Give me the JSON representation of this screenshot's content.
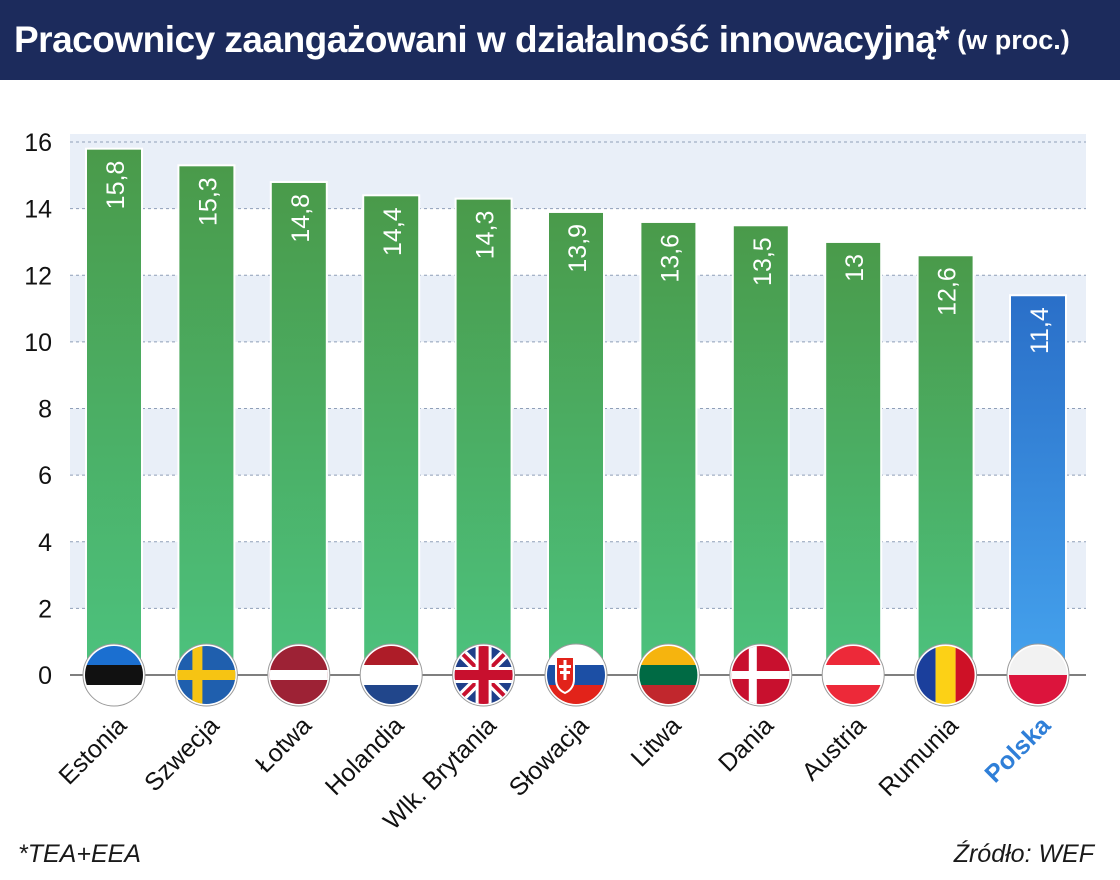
{
  "header": {
    "title": "Pracownicy zaangażowani w działalność innowacyjną*",
    "unit": "(w proc.)"
  },
  "footer": {
    "footnote": "*TEA+EEA",
    "source": "Źródło: WEF"
  },
  "colors": {
    "header_bg": "#1c2b5c",
    "bar_green_top": "#4a9a4a",
    "bar_green_bottom": "#4cc27e",
    "bar_blue_top": "#2a6fc8",
    "bar_blue_bottom": "#45a3ee",
    "highlight_label": "#2f7fd8"
  },
  "chart_data": {
    "type": "bar",
    "categories": [
      "Estonia",
      "Szwecja",
      "Łotwa",
      "Holandia",
      "Wlk. Brytania",
      "Słowacja",
      "Litwa",
      "Dania",
      "Austria",
      "Rumunia",
      "Polska"
    ],
    "values": [
      15.8,
      15.3,
      14.8,
      14.4,
      14.3,
      13.9,
      13.6,
      13.5,
      13,
      12.6,
      11.4
    ],
    "value_labels": [
      "15,8",
      "15,3",
      "14,8",
      "14,4",
      "14,3",
      "13,9",
      "13,6",
      "13,5",
      "13",
      "12,6",
      "11,4"
    ],
    "highlight": "Polska",
    "y_ticks": [
      0,
      2,
      4,
      6,
      8,
      10,
      12,
      14,
      16
    ],
    "ylim": [
      0,
      16
    ],
    "grid": true,
    "flags": [
      "estonia-flag",
      "sweden-flag",
      "latvia-flag",
      "netherlands-flag",
      "uk-flag",
      "slovakia-flag",
      "lithuania-flag",
      "denmark-flag",
      "austria-flag",
      "romania-flag",
      "poland-flag"
    ]
  }
}
